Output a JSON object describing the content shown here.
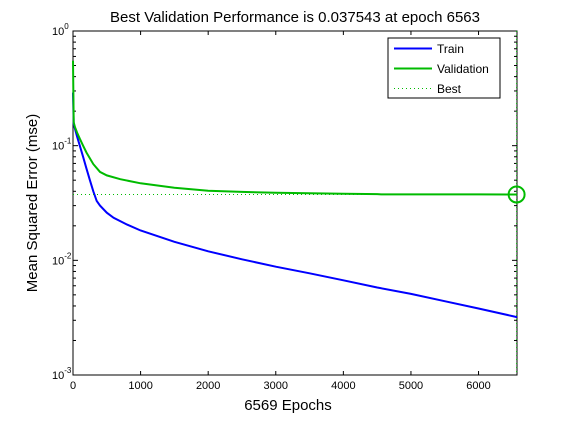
{
  "chart_data": {
    "type": "line",
    "title": "Best Validation Performance is 0.037543 at epoch 6563",
    "xlabel": "6569 Epochs",
    "ylabel": "Mean Squared Error  (mse)",
    "xlim": [
      0,
      6569
    ],
    "ylim": [
      0.001,
      1
    ],
    "yscale": "log",
    "grid": false,
    "legend_position": "top-right",
    "x_ticks": [
      0,
      1000,
      2000,
      3000,
      4000,
      5000,
      6000
    ],
    "y_ticks": [
      {
        "value": 1,
        "base": "10",
        "exp": "0"
      },
      {
        "value": 0.1,
        "base": "10",
        "exp": "-1"
      },
      {
        "value": 0.01,
        "base": "10",
        "exp": "-2"
      },
      {
        "value": 0.001,
        "base": "10",
        "exp": "-3"
      }
    ],
    "series": [
      {
        "name": "Train",
        "color": "#0000ff",
        "style": "solid",
        "x": [
          0,
          10,
          30,
          60,
          100,
          150,
          200,
          250,
          300,
          350,
          400,
          500,
          600,
          800,
          1000,
          1500,
          2000,
          2500,
          3000,
          3500,
          4000,
          4500,
          5000,
          5500,
          6000,
          6569
        ],
        "y": [
          0.29,
          0.155,
          0.14,
          0.12,
          0.1,
          0.08,
          0.063,
          0.05,
          0.04,
          0.033,
          0.03,
          0.026,
          0.0235,
          0.0205,
          0.0182,
          0.0145,
          0.012,
          0.0102,
          0.0088,
          0.0077,
          0.0067,
          0.0058,
          0.0051,
          0.0044,
          0.0038,
          0.0032
        ]
      },
      {
        "name": "Validation",
        "color": "#00bb00",
        "style": "solid",
        "x": [
          0,
          10,
          30,
          60,
          100,
          150,
          200,
          300,
          400,
          500,
          700,
          1000,
          1500,
          2000,
          2500,
          3000,
          4000,
          4500,
          4560,
          5000,
          6000,
          6563,
          6569
        ],
        "y": [
          0.55,
          0.16,
          0.145,
          0.13,
          0.115,
          0.1,
          0.087,
          0.069,
          0.059,
          0.055,
          0.051,
          0.047,
          0.043,
          0.0405,
          0.0395,
          0.0388,
          0.0381,
          0.0378,
          0.0376,
          0.0376,
          0.0376,
          0.037543,
          0.0376
        ]
      }
    ],
    "best": {
      "name": "Best",
      "color": "#00bb00",
      "style": "dotted",
      "epoch": 6563,
      "value": 0.037543
    }
  }
}
